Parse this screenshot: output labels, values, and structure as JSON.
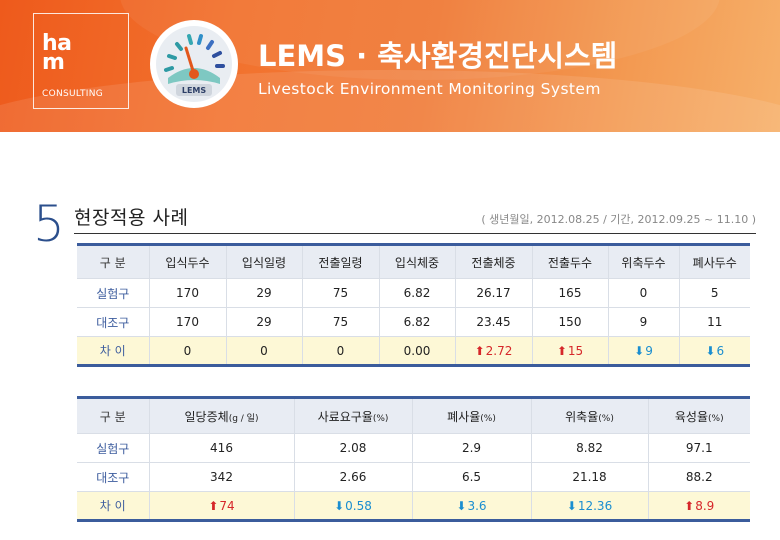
{
  "header": {
    "logo": {
      "line1": "ha\nm",
      "line2": "CONSULTING"
    },
    "gauge_label": "LEMS",
    "title": "LEMS · 축사환경진단시스템",
    "subtitle": "Livestock Environment Monitoring System"
  },
  "section": {
    "number": "5",
    "title": "현장적용 사례",
    "note": "( 생년월일, 2012.08.25  /  기간, 2012.09.25 ~ 11.10 )"
  },
  "table1": {
    "headers": [
      "구  분",
      "입식두수",
      "입식일령",
      "전출일령",
      "입식체중",
      "전출체중",
      "전출두수",
      "위축두수",
      "폐사두수"
    ],
    "rows": [
      {
        "label": "실험구",
        "values": [
          "170",
          "29",
          "75",
          "6.82",
          "26.17",
          "165",
          "0",
          "5"
        ]
      },
      {
        "label": "대조구",
        "values": [
          "170",
          "29",
          "75",
          "6.82",
          "23.45",
          "150",
          "9",
          "11"
        ]
      }
    ],
    "diff": {
      "label": "차  이",
      "values": [
        {
          "v": "0",
          "dir": ""
        },
        {
          "v": "0",
          "dir": ""
        },
        {
          "v": "0",
          "dir": ""
        },
        {
          "v": "0.00",
          "dir": ""
        },
        {
          "v": "2.72",
          "dir": "up"
        },
        {
          "v": "15",
          "dir": "up"
        },
        {
          "v": "9",
          "dir": "down"
        },
        {
          "v": "6",
          "dir": "down"
        }
      ]
    }
  },
  "table2": {
    "headers": [
      {
        "text": "구  분",
        "unit": ""
      },
      {
        "text": "일당증체",
        "unit": "(g / 일)"
      },
      {
        "text": "사료요구율",
        "unit": "(%)"
      },
      {
        "text": "폐사율",
        "unit": "(%)"
      },
      {
        "text": "위축율",
        "unit": "(%)"
      },
      {
        "text": "육성율",
        "unit": "(%)"
      }
    ],
    "rows": [
      {
        "label": "실험구",
        "values": [
          "416",
          "2.08",
          "2.9",
          "8.82",
          "97.1"
        ]
      },
      {
        "label": "대조구",
        "values": [
          "342",
          "2.66",
          "6.5",
          "21.18",
          "88.2"
        ]
      }
    ],
    "diff": {
      "label": "차  이",
      "values": [
        {
          "v": "74",
          "dir": "up"
        },
        {
          "v": "0.58",
          "dir": "down"
        },
        {
          "v": "3.6",
          "dir": "down"
        },
        {
          "v": "12.36",
          "dir": "down"
        },
        {
          "v": "8.9",
          "dir": "up"
        }
      ]
    }
  },
  "colors": {
    "up": "#d6272a",
    "down": "#1a8ed0",
    "accent": "#3b5c9c",
    "header": "#ee5a1c"
  }
}
